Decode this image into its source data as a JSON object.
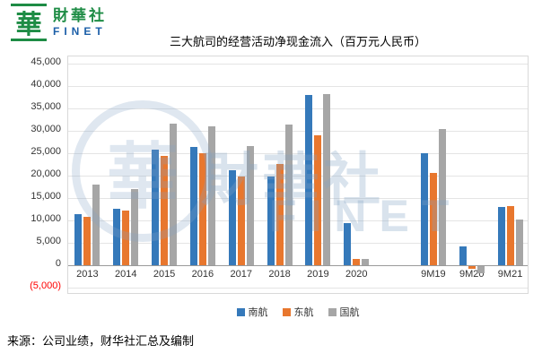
{
  "logo": {
    "icon_glyph": "華",
    "name_cn": "財華社",
    "name_en": "FINET"
  },
  "chart_data": {
    "type": "bar",
    "title": "三大航司的经营活动净现金流入（百万元人民币）",
    "categories": [
      "2013",
      "2014",
      "2015",
      "2016",
      "2017",
      "2018",
      "2019",
      "2020",
      "",
      "9M19",
      "9M20",
      "9M21"
    ],
    "series": [
      {
        "name": "南航",
        "color": "#3579BA",
        "values": [
          11300,
          12600,
          25800,
          26400,
          21100,
          19700,
          38000,
          9300,
          null,
          25000,
          4100,
          13000
        ]
      },
      {
        "name": "东航",
        "color": "#E8772E",
        "values": [
          10800,
          12200,
          24400,
          25000,
          19700,
          22600,
          29000,
          1400,
          null,
          20500,
          -500,
          13200
        ]
      },
      {
        "name": "国航",
        "color": "#A6A6A6",
        "values": [
          18000,
          17000,
          31500,
          30900,
          26600,
          31300,
          38200,
          1400,
          null,
          30300,
          -1500,
          10200
        ]
      }
    ],
    "ylim": [
      -5000,
      45000
    ],
    "ytick_step": 5000,
    "ytick_labels": [
      "45,000",
      "40,000",
      "35,000",
      "30,000",
      "25,000",
      "20,000",
      "15,000",
      "10,000",
      "5,000",
      "0",
      "(5,000)"
    ],
    "negative_tick_color": "#FF0000",
    "grid": true,
    "legend_position": "bottom"
  },
  "watermark": {
    "seal_glyph": "華",
    "text_cn": "財華社",
    "text_en": "FINET"
  },
  "source_note": "来源：公司业绩，财华社汇总及编制"
}
